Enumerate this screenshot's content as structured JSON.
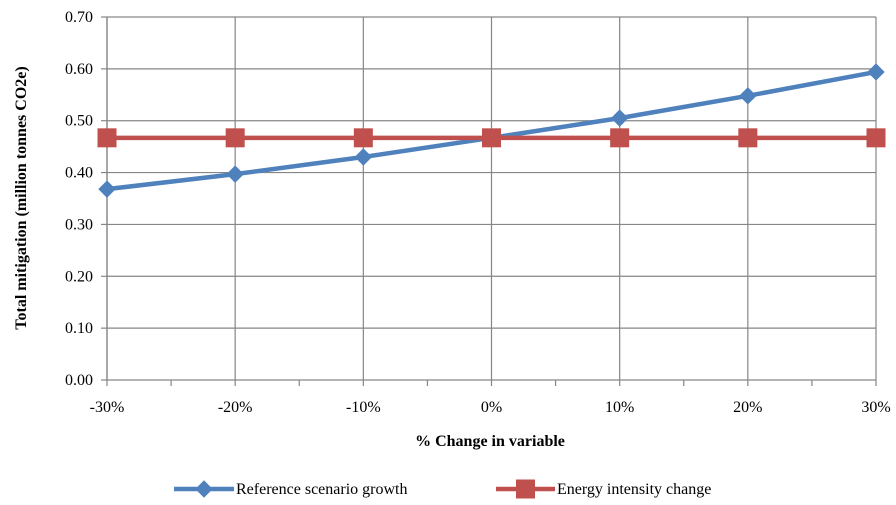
{
  "chart_data": {
    "type": "line",
    "title": "",
    "xlabel": "% Change in variable",
    "ylabel": "Total mitigation (million tonnes CO2e)",
    "categories": [
      "-30%",
      "-20%",
      "-10%",
      "0%",
      "10%",
      "20%",
      "30%"
    ],
    "x": [
      -30,
      -20,
      -10,
      0,
      10,
      20,
      30
    ],
    "ylim": [
      0,
      0.7
    ],
    "yticks": [
      "0.00",
      "0.10",
      "0.20",
      "0.30",
      "0.40",
      "0.50",
      "0.60",
      "0.70"
    ],
    "grid": true,
    "legend_position": "bottom",
    "series": [
      {
        "name": "Reference scenario growth",
        "marker": "diamond",
        "color": "#4F81BD",
        "values": [
          0.368,
          0.397,
          0.43,
          0.467,
          0.505,
          0.548,
          0.594
        ]
      },
      {
        "name": "Energy intensity change",
        "marker": "square",
        "color": "#C0504D",
        "values": [
          0.467,
          0.467,
          0.467,
          0.467,
          0.467,
          0.467,
          0.467
        ]
      }
    ]
  }
}
